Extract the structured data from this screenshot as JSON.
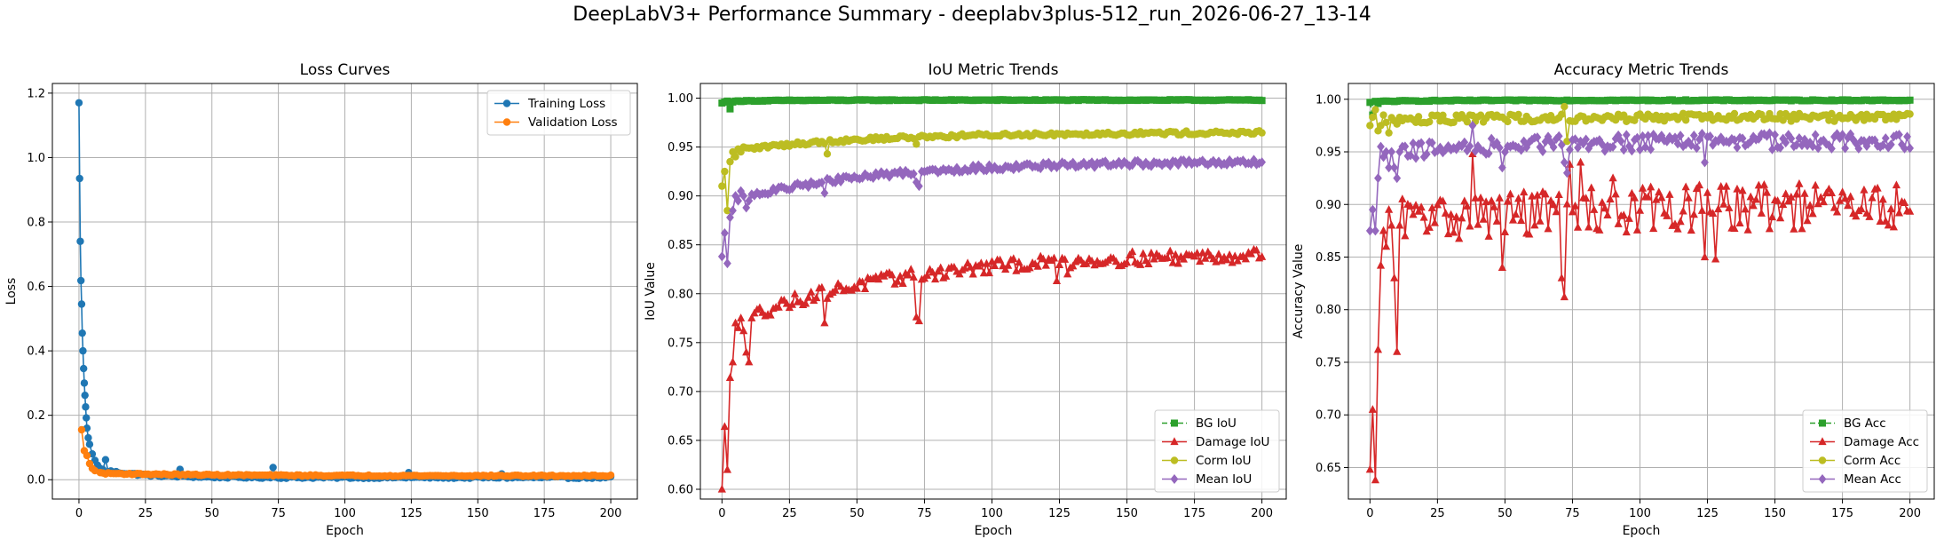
{
  "figure": {
    "suptitle": "DeepLabV3+ Performance Summary - deeplabv3plus-512_run_2026-06-27_13-14"
  },
  "colors": {
    "blue": "#1f77b4",
    "orange": "#ff7f0e",
    "green": "#2ca02c",
    "red": "#d62728",
    "olive": "#bcbd22",
    "purple": "#9467bd"
  },
  "chart_data": [
    {
      "type": "line",
      "title": "Loss Curves",
      "xlabel": "Epoch",
      "ylabel": "Loss",
      "xlim": [
        -10,
        210
      ],
      "ylim": [
        -0.06,
        1.23
      ],
      "xticks": [
        0,
        25,
        50,
        75,
        100,
        125,
        150,
        175,
        200
      ],
      "yticks": [
        0.0,
        0.2,
        0.4,
        0.6,
        0.8,
        1.0,
        1.2
      ],
      "ytick_decimals": 1,
      "grid": true,
      "legend": "top-right",
      "series": [
        {
          "name": "Training Loss",
          "color": "#1f77b4",
          "marker": "circle",
          "head": [
            [
              0,
              1.17
            ],
            [
              0.25,
              0.935
            ],
            [
              0.5,
              0.74
            ],
            [
              0.75,
              0.618
            ],
            [
              1.0,
              0.545
            ],
            [
              1.25,
              0.455
            ],
            [
              1.5,
              0.4
            ],
            [
              1.75,
              0.345
            ],
            [
              2.0,
              0.3
            ],
            [
              2.25,
              0.262
            ],
            [
              2.5,
              0.226
            ],
            [
              2.75,
              0.192
            ],
            [
              3.0,
              0.16
            ],
            [
              3.5,
              0.13
            ],
            [
              4,
              0.11
            ],
            [
              5,
              0.08
            ],
            [
              6,
              0.06
            ],
            [
              7,
              0.045
            ],
            [
              8,
              0.035
            ]
          ],
          "tail": {
            "from": 9,
            "to": 200,
            "start": 0.03,
            "end": 0.007,
            "decay": 15,
            "noise": 0.003
          },
          "spikes": [
            [
              10,
              0.062
            ],
            [
              38,
              0.032
            ],
            [
              73,
              0.038
            ],
            [
              124,
              0.022
            ],
            [
              159,
              0.018
            ]
          ]
        },
        {
          "name": "Validation Loss",
          "color": "#ff7f0e",
          "marker": "circle",
          "head": [
            [
              1,
              0.155
            ],
            [
              2,
              0.09
            ],
            [
              3,
              0.075
            ],
            [
              4,
              0.05
            ],
            [
              5,
              0.035
            ],
            [
              6,
              0.028
            ],
            [
              8,
              0.022
            ]
          ],
          "tail": {
            "from": 9,
            "to": 200,
            "start": 0.02,
            "end": 0.012,
            "decay": 40,
            "noise": 0.002
          },
          "spikes": []
        }
      ]
    },
    {
      "type": "line",
      "title": "IoU Metric Trends",
      "xlabel": "Epoch",
      "ylabel": "IoU Value",
      "xlim": [
        -8,
        209
      ],
      "ylim": [
        0.59,
        1.015
      ],
      "xticks": [
        0,
        25,
        50,
        75,
        100,
        125,
        150,
        175,
        200
      ],
      "yticks": [
        0.6,
        0.65,
        0.7,
        0.75,
        0.8,
        0.85,
        0.9,
        0.95,
        1.0
      ],
      "ytick_decimals": 2,
      "grid": true,
      "legend": "bottom-right",
      "series": [
        {
          "name": "BG IoU",
          "color": "#2ca02c",
          "marker": "square",
          "dashed": true,
          "head": [
            [
              0,
              0.995
            ],
            [
              1,
              0.996
            ],
            [
              2,
              0.997
            ],
            [
              3,
              0.989
            ],
            [
              4,
              0.996
            ],
            [
              5,
              0.997
            ]
          ],
          "tail": {
            "from": 6,
            "to": 200,
            "start": 0.997,
            "end": 0.998,
            "decay": 20,
            "noise": 0.0005
          },
          "spikes": []
        },
        {
          "name": "Damage IoU",
          "color": "#d62728",
          "marker": "triangle",
          "head": [
            [
              0,
              0.6
            ],
            [
              1,
              0.664
            ],
            [
              2,
              0.62
            ],
            [
              3,
              0.714
            ],
            [
              4,
              0.73
            ],
            [
              5,
              0.77
            ],
            [
              6,
              0.765
            ],
            [
              7,
              0.775
            ],
            [
              8,
              0.762
            ],
            [
              9,
              0.74
            ],
            [
              10,
              0.73
            ],
            [
              11,
              0.775
            ],
            [
              12,
              0.78
            ]
          ],
          "tail": {
            "from": 13,
            "to": 200,
            "start": 0.78,
            "end": 0.842,
            "decay": 60,
            "noise": 0.007
          },
          "spikes": [
            [
              38,
              0.77
            ],
            [
              72,
              0.776
            ],
            [
              73,
              0.772
            ],
            [
              124,
              0.813
            ],
            [
              128,
              0.82
            ]
          ]
        },
        {
          "name": "Corm IoU",
          "color": "#bcbd22",
          "marker": "circle",
          "head": [
            [
              0,
              0.91
            ],
            [
              1,
              0.925
            ],
            [
              2,
              0.885
            ],
            [
              3,
              0.935
            ],
            [
              4,
              0.945
            ],
            [
              5,
              0.94
            ],
            [
              6,
              0.948
            ],
            [
              7,
              0.945
            ],
            [
              8,
              0.95
            ]
          ],
          "tail": {
            "from": 9,
            "to": 200,
            "start": 0.948,
            "end": 0.965,
            "decay": 50,
            "noise": 0.002
          },
          "spikes": [
            [
              39,
              0.943
            ],
            [
              72,
              0.953
            ]
          ]
        },
        {
          "name": "Mean IoU",
          "color": "#9467bd",
          "marker": "diamond",
          "head": [
            [
              0,
              0.838
            ],
            [
              1,
              0.862
            ],
            [
              2,
              0.831
            ],
            [
              3,
              0.878
            ],
            [
              4,
              0.885
            ],
            [
              5,
              0.9
            ],
            [
              6,
              0.895
            ],
            [
              7,
              0.905
            ],
            [
              8,
              0.9
            ],
            [
              9,
              0.888
            ],
            [
              10,
              0.895
            ]
          ],
          "tail": {
            "from": 11,
            "to": 200,
            "start": 0.9,
            "end": 0.935,
            "decay": 50,
            "noise": 0.003
          },
          "spikes": [
            [
              38,
              0.903
            ],
            [
              72,
              0.914
            ],
            [
              73,
              0.91
            ]
          ]
        }
      ]
    },
    {
      "type": "line",
      "title": "Accuracy Metric Trends",
      "xlabel": "Epoch",
      "ylabel": "Accuracy Value",
      "xlim": [
        -8,
        209
      ],
      "ylim": [
        0.62,
        1.015
      ],
      "xticks": [
        0,
        25,
        50,
        75,
        100,
        125,
        150,
        175,
        200
      ],
      "yticks": [
        0.65,
        0.7,
        0.75,
        0.8,
        0.85,
        0.9,
        0.95,
        1.0
      ],
      "ytick_decimals": 2,
      "grid": true,
      "legend": "bottom-right",
      "series": [
        {
          "name": "BG Acc",
          "color": "#2ca02c",
          "marker": "square",
          "dashed": true,
          "head": [
            [
              0,
              0.997
            ],
            [
              1,
              0.985
            ],
            [
              2,
              0.998
            ],
            [
              3,
              0.996
            ],
            [
              4,
              0.998
            ]
          ],
          "tail": {
            "from": 5,
            "to": 200,
            "start": 0.998,
            "end": 0.999,
            "decay": 20,
            "noise": 0.0005
          },
          "spikes": []
        },
        {
          "name": "Damage Acc",
          "color": "#d62728",
          "marker": "triangle",
          "head": [
            [
              0,
              0.648
            ],
            [
              1,
              0.705
            ],
            [
              2,
              0.638
            ],
            [
              3,
              0.762
            ],
            [
              4,
              0.842
            ],
            [
              5,
              0.875
            ],
            [
              6,
              0.86
            ],
            [
              7,
              0.895
            ],
            [
              8,
              0.88
            ],
            [
              9,
              0.83
            ],
            [
              10,
              0.76
            ],
            [
              11,
              0.88
            ],
            [
              12,
              0.905
            ],
            [
              13,
              0.87
            ],
            [
              14,
              0.9
            ]
          ],
          "tail": {
            "from": 15,
            "to": 200,
            "start": 0.885,
            "end": 0.899,
            "decay": 60,
            "noise": 0.022
          },
          "spikes": [
            [
              38,
              0.948
            ],
            [
              49,
              0.84
            ],
            [
              71,
              0.83
            ],
            [
              72,
              0.812
            ],
            [
              74,
              0.938
            ],
            [
              78,
              0.94
            ],
            [
              90,
              0.925
            ],
            [
              124,
              0.85
            ],
            [
              128,
              0.848
            ]
          ]
        },
        {
          "name": "Corm Acc",
          "color": "#bcbd22",
          "marker": "circle",
          "head": [
            [
              0,
              0.975
            ],
            [
              1,
              0.983
            ],
            [
              2,
              0.99
            ],
            [
              3,
              0.97
            ],
            [
              4,
              0.975
            ],
            [
              5,
              0.985
            ],
            [
              6,
              0.978
            ],
            [
              7,
              0.968
            ]
          ],
          "tail": {
            "from": 8,
            "to": 200,
            "start": 0.98,
            "end": 0.983,
            "decay": 40,
            "noise": 0.004
          },
          "spikes": [
            [
              72,
              0.993
            ],
            [
              73,
              0.96
            ]
          ]
        },
        {
          "name": "Mean Acc",
          "color": "#9467bd",
          "marker": "diamond",
          "head": [
            [
              0,
              0.875
            ],
            [
              1,
              0.895
            ],
            [
              2,
              0.875
            ],
            [
              3,
              0.925
            ],
            [
              4,
              0.955
            ],
            [
              5,
              0.945
            ],
            [
              6,
              0.95
            ],
            [
              7,
              0.935
            ],
            [
              8,
              0.95
            ],
            [
              9,
              0.935
            ],
            [
              10,
              0.925
            ],
            [
              11,
              0.95
            ],
            [
              12,
              0.955
            ]
          ],
          "tail": {
            "from": 13,
            "to": 200,
            "start": 0.95,
            "end": 0.961,
            "decay": 50,
            "noise": 0.008
          },
          "spikes": [
            [
              38,
              0.975
            ],
            [
              49,
              0.935
            ],
            [
              72,
              0.94
            ],
            [
              73,
              0.93
            ],
            [
              124,
              0.94
            ]
          ]
        }
      ]
    }
  ]
}
